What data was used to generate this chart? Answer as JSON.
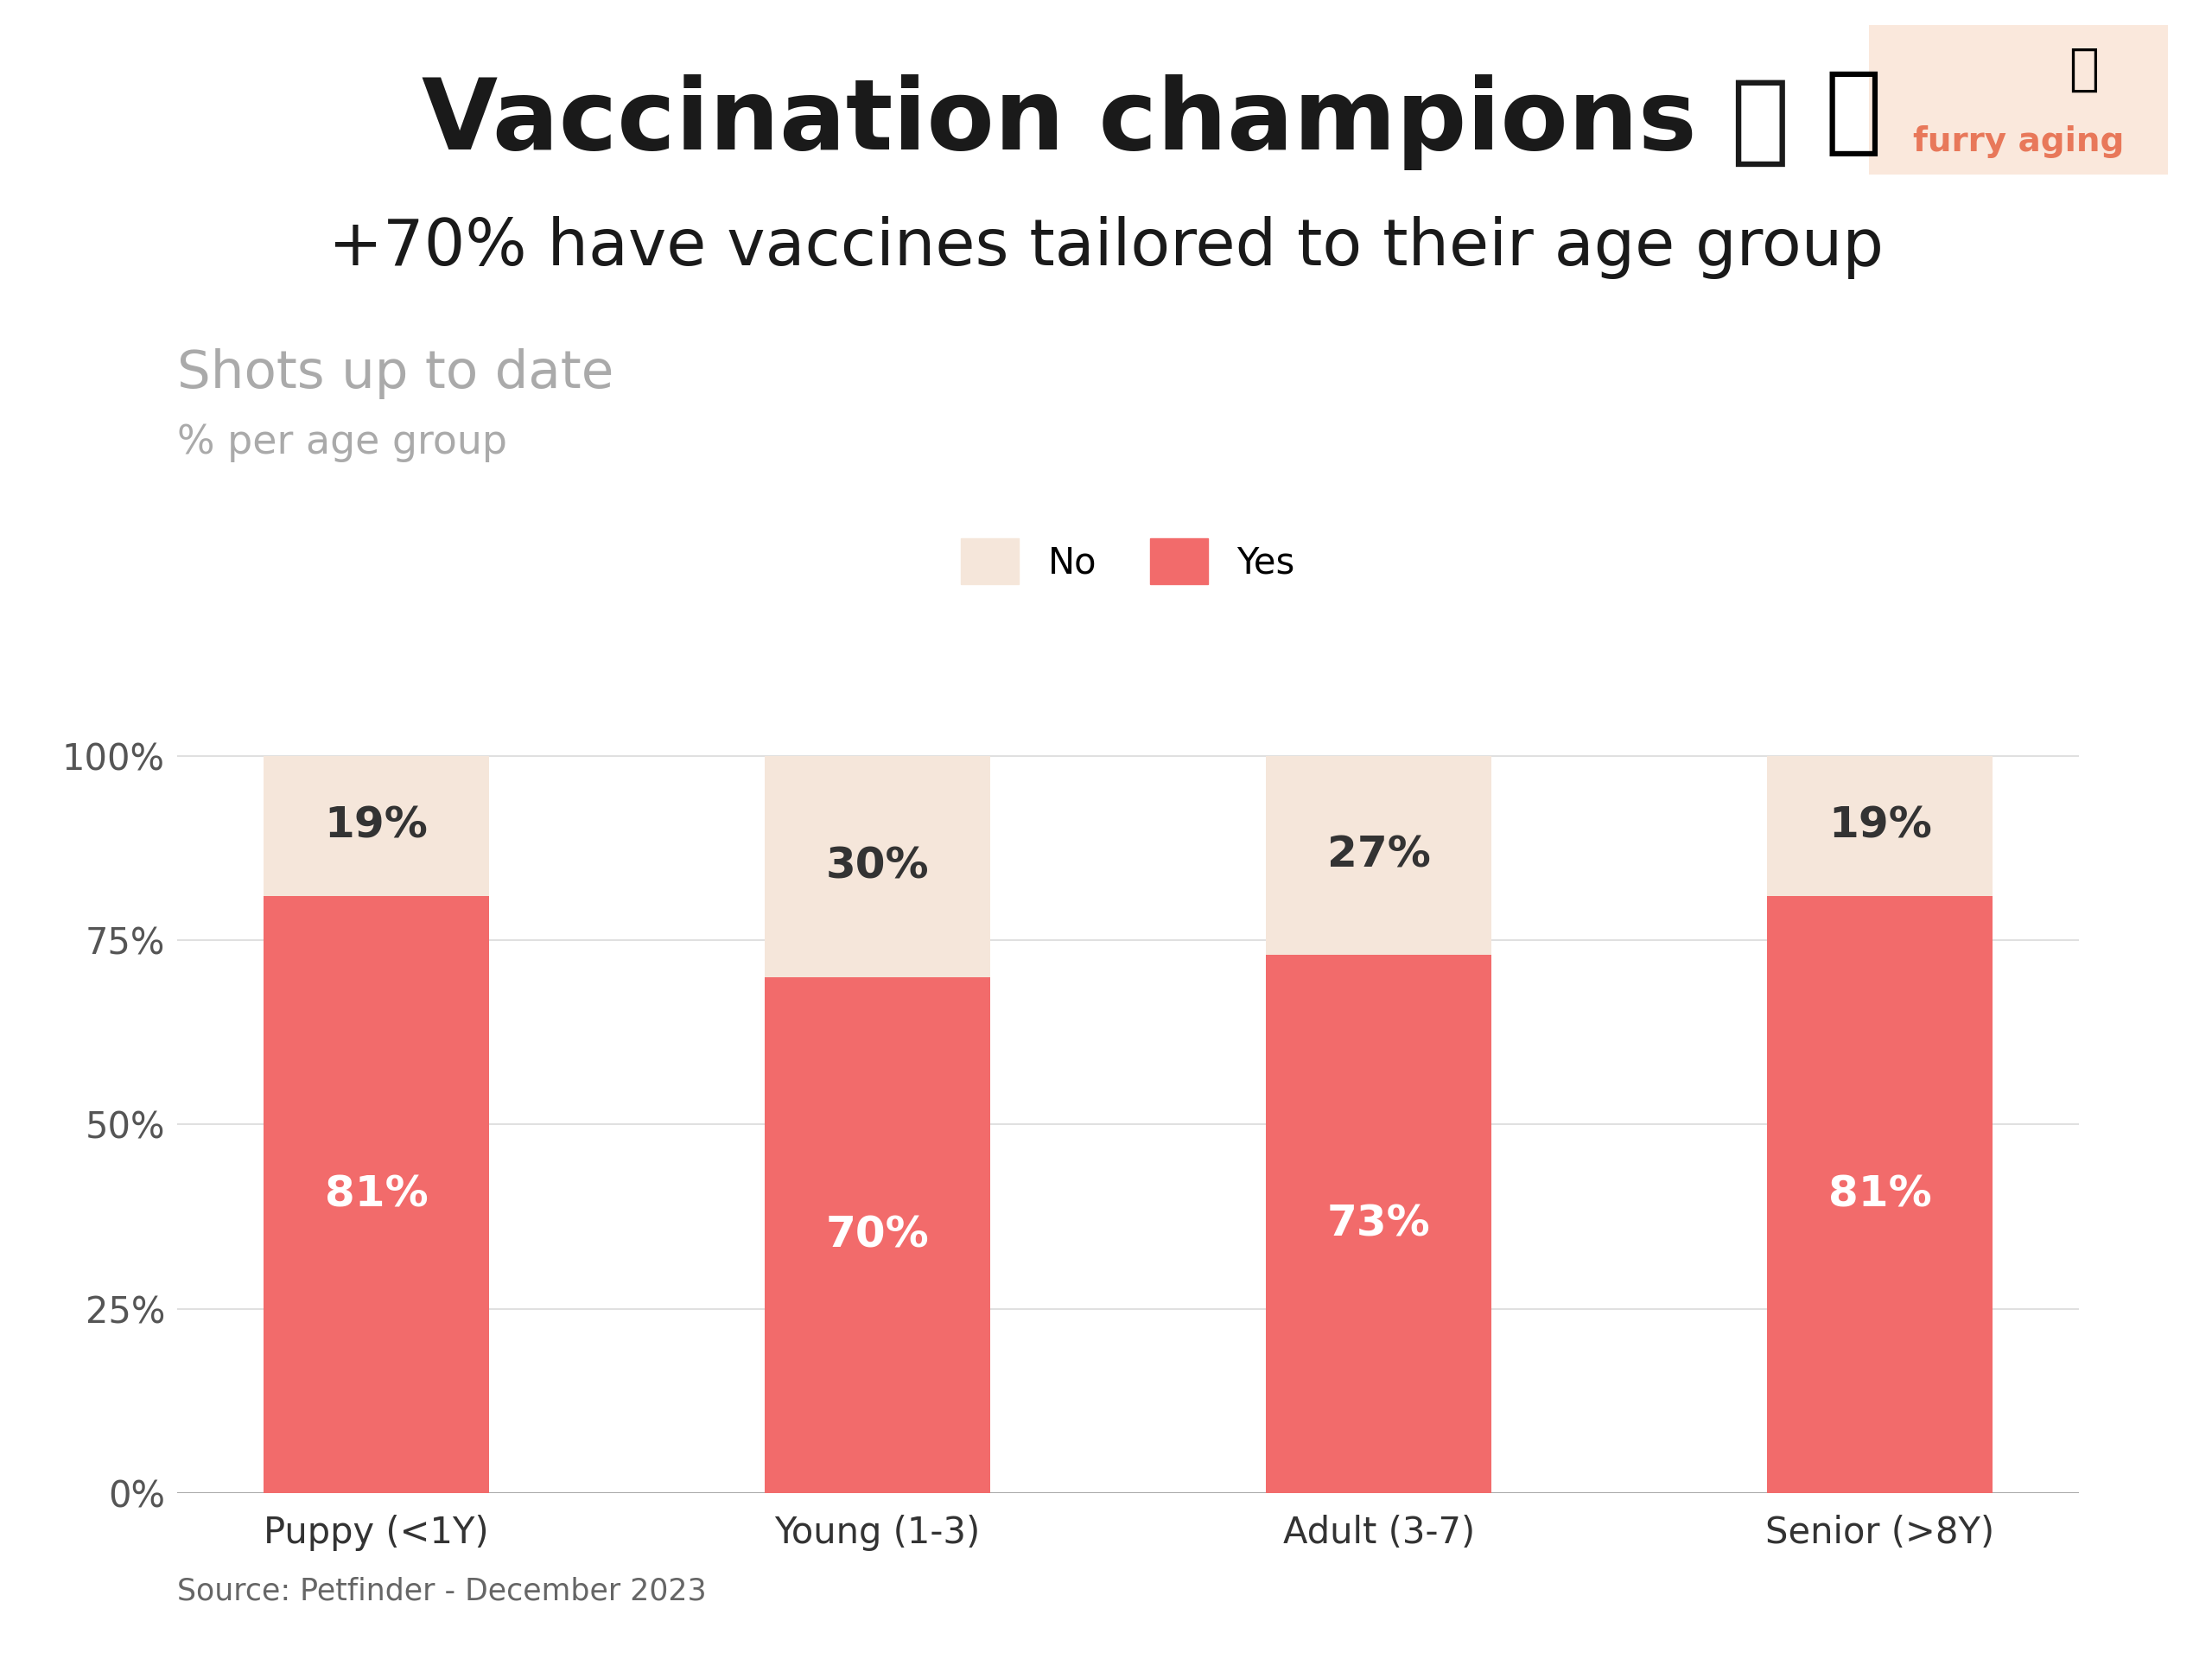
{
  "title": "Vaccination champions",
  "title_emoji": "🏅",
  "subtitle": "+70% have vaccines tailored to their age group",
  "chart_title": "Shots up to date",
  "chart_subtitle": "% per age group",
  "categories": [
    "Puppy (<1Y)",
    "Young (1-3)",
    "Adult (3-7)",
    "Senior (>8Y)"
  ],
  "yes_values": [
    81,
    70,
    73,
    81
  ],
  "no_values": [
    19,
    30,
    27,
    19
  ],
  "yes_color": "#F26B6B",
  "no_color": "#F5E6DA",
  "background_color": "#FFFFFF",
  "title_color": "#1a1a1a",
  "subtitle_color": "#1a1a1a",
  "chart_title_color": "#AAAAAA",
  "bar_label_color_yes": "#FFFFFF",
  "bar_label_color_no": "#333333",
  "source_text": "Source: Petfinder - December 2023",
  "logo_bg_color": "#FAE8DC",
  "logo_text_color": "#E8785A",
  "logo_text": "furry aging",
  "dog_emoji": "🐕",
  "medal_emoji": "🥇",
  "ribbon_emoji": "🏅",
  "yticks": [
    0,
    25,
    50,
    75,
    100
  ],
  "ytick_labels": [
    "0%",
    "25%",
    "50%",
    "75%",
    "100%"
  ],
  "grid_color": "#DDDDDD"
}
